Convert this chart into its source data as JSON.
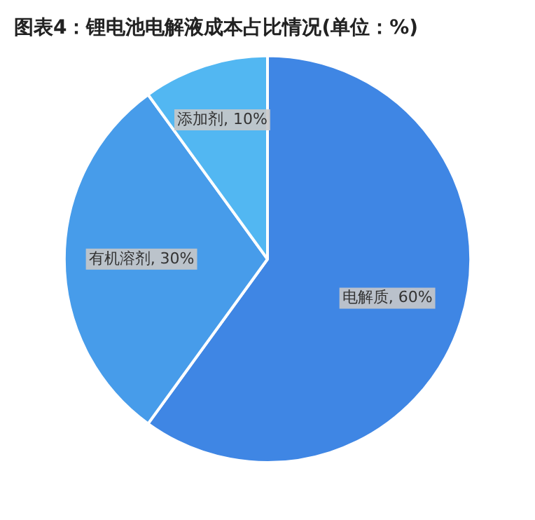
{
  "chart_data": {
    "type": "pie",
    "title": "图表4：锂电池电解液成本占比情况(单位：%)",
    "categories": [
      "电解质",
      "有机溶剂",
      "添加剂"
    ],
    "values": [
      60,
      30,
      10
    ],
    "colors": [
      "#3f86e4",
      "#479cea",
      "#52b7f2"
    ],
    "value_labels": [
      "60%",
      "30%",
      "10%"
    ],
    "legend": false
  }
}
